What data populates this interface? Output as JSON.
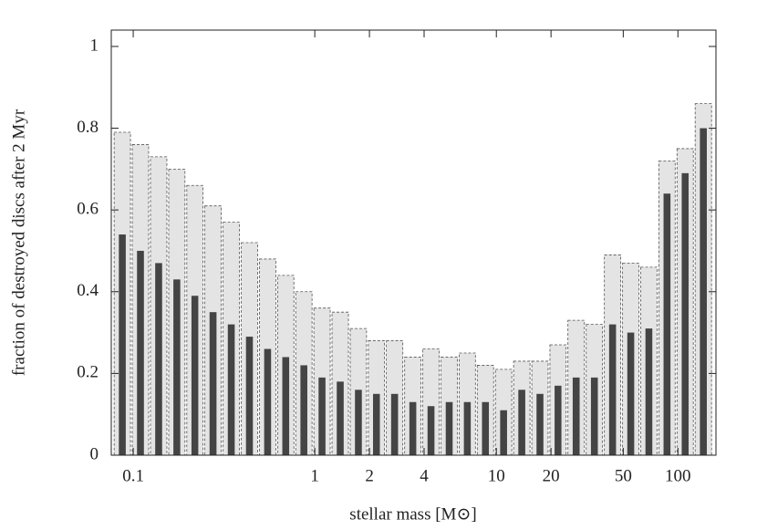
{
  "chart_data": {
    "type": "histogram",
    "xlabel": "stellar mass [M⊙]",
    "ylabel": "fraction of destroyed discs after 2 Myr",
    "xscale": "log",
    "bins": [
      0.0776,
      0.0977,
      0.123,
      0.155,
      0.195,
      0.245,
      0.309,
      0.389,
      0.49,
      0.617,
      0.776,
      0.977,
      1.23,
      1.55,
      1.95,
      2.45,
      3.09,
      3.89,
      4.9,
      6.17,
      7.76,
      9.77,
      12.3,
      15.5,
      19.5,
      24.5,
      30.9,
      38.9,
      49.0,
      61.7,
      77.6,
      97.7,
      123,
      155
    ],
    "series": [
      {
        "color": "#e4e4e4",
        "edgecolor": "#555555",
        "values": [
          0.79,
          0.76,
          0.73,
          0.7,
          0.66,
          0.61,
          0.57,
          0.52,
          0.48,
          0.44,
          0.4,
          0.36,
          0.35,
          0.31,
          0.28,
          0.28,
          0.24,
          0.26,
          0.24,
          0.25,
          0.22,
          0.21,
          0.23,
          0.23,
          0.27,
          0.33,
          0.32,
          0.49,
          0.47,
          0.46,
          0.72,
          0.75,
          0.86
        ]
      },
      {
        "color": "#444444",
        "values": [
          0.54,
          0.5,
          0.47,
          0.43,
          0.39,
          0.35,
          0.32,
          0.29,
          0.26,
          0.24,
          0.22,
          0.19,
          0.18,
          0.16,
          0.15,
          0.15,
          0.13,
          0.12,
          0.13,
          0.13,
          0.13,
          0.11,
          0.16,
          0.15,
          0.17,
          0.19,
          0.19,
          0.32,
          0.3,
          0.31,
          0.64,
          0.69,
          0.8
        ]
      }
    ],
    "xlim": [
      0.0757,
      162
    ],
    "xticks": [
      0.1,
      1,
      2,
      4,
      10,
      20,
      50,
      100
    ],
    "ylim": [
      0,
      1.04
    ],
    "yticks": [
      0,
      0.2,
      0.4,
      0.6,
      0.8,
      1
    ]
  }
}
